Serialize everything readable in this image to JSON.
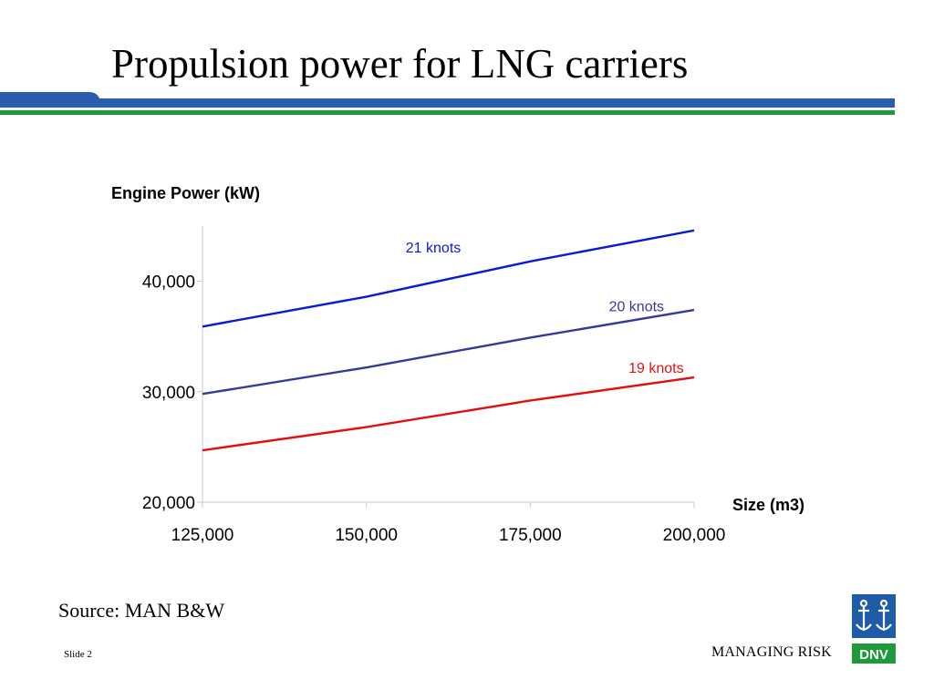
{
  "slide": {
    "title": "Propulsion power for LNG carriers",
    "source": "Source: MAN B&W",
    "slide_number": "Slide 2",
    "tagline": "MANAGING RISK",
    "logo_text": "DNV"
  },
  "colors": {
    "header_blue": "#2a5db0",
    "header_green": "#1f9a3a",
    "logo_blue": "#1f5ca8",
    "logo_green": "#1f9a3a"
  },
  "chart_data": {
    "type": "line",
    "title": "",
    "ylabel": "Engine Power (kW)",
    "xlabel": "Size (m3)",
    "x": [
      125000,
      150000,
      175000,
      200000
    ],
    "x_tick_labels": [
      "125,000",
      "150,000",
      "175,000",
      "200,000"
    ],
    "y_ticks": [
      20000,
      30000,
      40000
    ],
    "y_tick_labels": [
      "20,000",
      "30,000",
      "40,000"
    ],
    "xlim": [
      125000,
      200000
    ],
    "ylim": [
      20000,
      45000
    ],
    "grid": false,
    "legend": "inline labels",
    "series": [
      {
        "name": "21 knots",
        "values": [
          35900,
          38600,
          41800,
          44600
        ],
        "color": "#0a1ad2"
      },
      {
        "name": "20 knots",
        "values": [
          29800,
          32200,
          34900,
          37400
        ],
        "color": "#36399a"
      },
      {
        "name": "19 knots",
        "values": [
          24700,
          26800,
          29200,
          31300
        ],
        "color": "#e01010"
      }
    ]
  }
}
